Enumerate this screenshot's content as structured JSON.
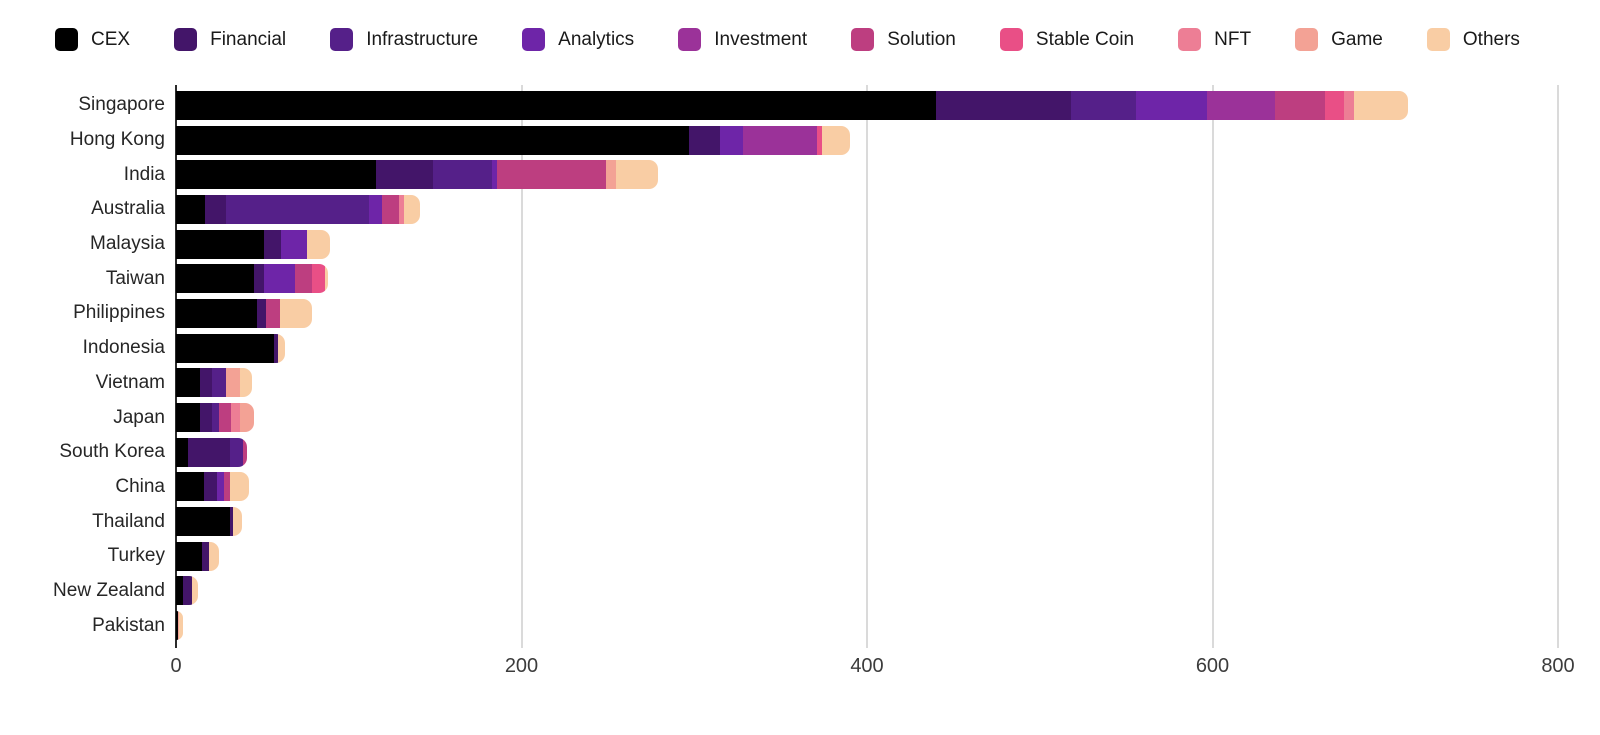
{
  "chart_data": {
    "type": "bar",
    "orientation": "horizontal",
    "stacked": true,
    "title": "",
    "xlabel": "",
    "ylabel": "",
    "xlim": [
      0,
      800
    ],
    "x_ticks": [
      0,
      200,
      400,
      600,
      800
    ],
    "grid": "vertical-light",
    "legend_position": "top",
    "countries": [
      "Singapore",
      "Hong Kong",
      "India",
      "Australia",
      "Malaysia",
      "Taiwan",
      "Philippines",
      "Indonesia",
      "Vietnam",
      "Japan",
      "South Korea",
      "China",
      "Thailand",
      "Turkey",
      "New Zealand",
      "Pakistan"
    ],
    "series": [
      {
        "name": "CEX",
        "color": "#000000",
        "values": [
          440,
          297,
          116,
          17,
          51,
          45,
          47,
          57,
          14,
          14,
          7,
          16,
          31,
          15,
          4,
          1
        ]
      },
      {
        "name": "Financial",
        "color": "#431569",
        "values": [
          78,
          18,
          33,
          12,
          10,
          6,
          5,
          2,
          7,
          7,
          24,
          8,
          2,
          4,
          5,
          0
        ]
      },
      {
        "name": "Infrastructure",
        "color": "#552089",
        "values": [
          38,
          0,
          34,
          83,
          0,
          0,
          0,
          0,
          8,
          4,
          8,
          0,
          0,
          0,
          0,
          0
        ]
      },
      {
        "name": "Analytics",
        "color": "#6e25a8",
        "values": [
          41,
          13,
          3,
          7,
          15,
          18,
          0,
          0,
          0,
          0,
          0,
          4,
          0,
          0,
          0,
          0
        ]
      },
      {
        "name": "Investment",
        "color": "#9b3299",
        "values": [
          39,
          43,
          0,
          0,
          0,
          0,
          0,
          0,
          0,
          0,
          0,
          0,
          0,
          0,
          0,
          0
        ]
      },
      {
        "name": "Solution",
        "color": "#bd3e80",
        "values": [
          29,
          0,
          63,
          10,
          0,
          10,
          8,
          0,
          0,
          7,
          2,
          3,
          0,
          0,
          0,
          0
        ]
      },
      {
        "name": "Stable Coin",
        "color": "#e94f86",
        "values": [
          11,
          3,
          0,
          0,
          0,
          7,
          0,
          0,
          0,
          0,
          0,
          0,
          0,
          0,
          0,
          0
        ]
      },
      {
        "name": "NFT",
        "color": "#ed7e95",
        "values": [
          6,
          0,
          0,
          3,
          0,
          0,
          0,
          0,
          0,
          5,
          0,
          0,
          0,
          0,
          0,
          0
        ]
      },
      {
        "name": "Game",
        "color": "#f3a295",
        "values": [
          0,
          0,
          6,
          0,
          0,
          0,
          0,
          0,
          8,
          8,
          0,
          0,
          0,
          0,
          0,
          1
        ]
      },
      {
        "name": "Others",
        "color": "#f9cda4",
        "values": [
          31,
          16,
          24,
          9,
          13,
          2,
          19,
          4,
          7,
          0,
          0,
          11,
          5,
          6,
          4,
          2
        ]
      }
    ]
  }
}
